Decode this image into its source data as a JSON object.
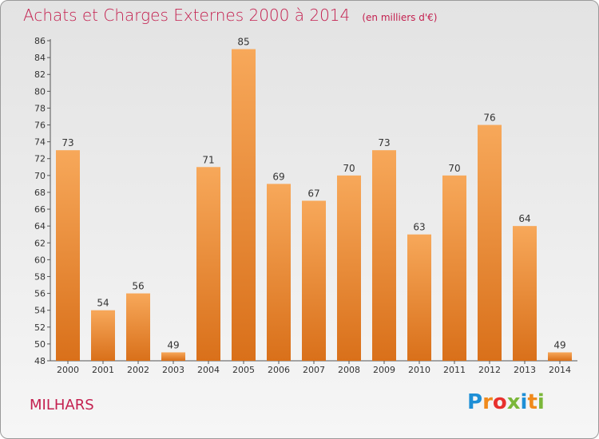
{
  "title": "Achats et Charges Externes 2000 à 2014",
  "subtitle": "(en milliers d'€)",
  "commune": "MILHARS",
  "logo": {
    "letters": [
      "P",
      "r",
      "o",
      "x",
      "i",
      "t",
      "i"
    ],
    "colors": [
      "#1e8fd6",
      "#f08a1c",
      "#e8312e",
      "#7bb73a",
      "#1e8fd6",
      "#f08a1c",
      "#7bb73a"
    ]
  },
  "colors": {
    "bar": "#f08a2c",
    "bar_light": "#f7a85a",
    "bar_dark": "#d9701a",
    "axis": "#555555",
    "accent": "#c4204f"
  },
  "chart_data": {
    "type": "bar",
    "categories": [
      "2000",
      "2001",
      "2002",
      "2003",
      "2004",
      "2005",
      "2006",
      "2007",
      "2008",
      "2009",
      "2010",
      "2011",
      "2012",
      "2013",
      "2014"
    ],
    "values": [
      73,
      54,
      56,
      49,
      71,
      85,
      69,
      67,
      70,
      73,
      63,
      70,
      76,
      64,
      49
    ],
    "ylim": [
      48,
      86
    ],
    "yticks": [
      48,
      50,
      52,
      54,
      56,
      58,
      60,
      62,
      64,
      66,
      68,
      70,
      72,
      74,
      76,
      78,
      80,
      82,
      84,
      86
    ],
    "xlabel": "",
    "ylabel": "",
    "grid": false,
    "data_labels": true
  }
}
